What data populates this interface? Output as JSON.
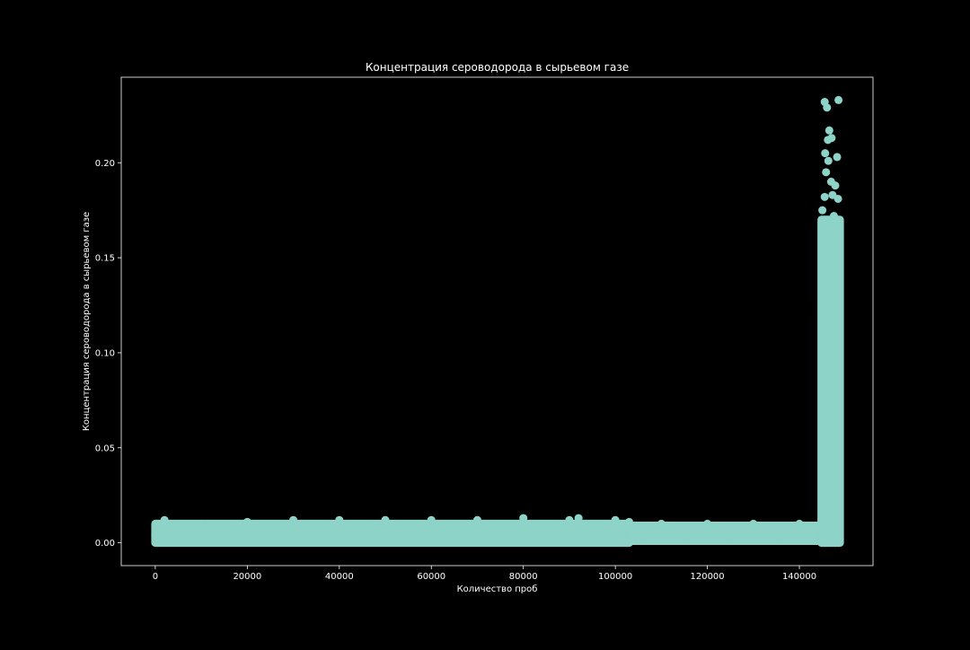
{
  "chart_data": {
    "type": "scatter",
    "title": "Концентрация сероводорода в сырьевом газе",
    "xlabel": "Количество проб",
    "ylabel": "Концентрация сероводорода в сырьевом газе",
    "xlim": [
      -7400,
      156000
    ],
    "ylim": [
      -0.012,
      0.245
    ],
    "x_ticks": [
      0,
      20000,
      40000,
      60000,
      80000,
      100000,
      120000,
      140000
    ],
    "x_tick_labels": [
      "0",
      "20000",
      "40000",
      "60000",
      "80000",
      "100000",
      "120000",
      "140000"
    ],
    "y_ticks": [
      0.0,
      0.05,
      0.1,
      0.15,
      0.2
    ],
    "y_tick_labels": [
      "0.00",
      "0.05",
      "0.10",
      "0.15",
      "0.20"
    ],
    "grid": false,
    "marker_color": "#8dd3c7",
    "background": "#000000",
    "series": [
      {
        "points": [
          [
            0,
            0.004
          ],
          [
            2000,
            0.012
          ],
          [
            5000,
            0.003
          ],
          [
            10000,
            0.01
          ],
          [
            15000,
            0.001
          ],
          [
            20000,
            0.011
          ],
          [
            25000,
            0.002
          ],
          [
            30000,
            0.012
          ],
          [
            35000,
            0.001
          ],
          [
            40000,
            0.012
          ],
          [
            45000,
            0.002
          ],
          [
            50000,
            0.012
          ],
          [
            55000,
            0.001
          ],
          [
            60000,
            0.012
          ],
          [
            65000,
            0.002
          ],
          [
            70000,
            0.012
          ],
          [
            75000,
            0.001
          ],
          [
            80000,
            0.013
          ],
          [
            85000,
            0.002
          ],
          [
            90000,
            0.012
          ],
          [
            92000,
            0.013
          ],
          [
            95000,
            0.002
          ],
          [
            100000,
            0.012
          ],
          [
            103000,
            0.011
          ],
          [
            105000,
            0.003
          ],
          [
            110000,
            0.01
          ],
          [
            115000,
            0.003
          ],
          [
            120000,
            0.01
          ],
          [
            125000,
            0.003
          ],
          [
            130000,
            0.01
          ],
          [
            135000,
            0.003
          ],
          [
            140000,
            0.01
          ],
          [
            143000,
            0.004
          ],
          [
            145500,
            0.232
          ],
          [
            146000,
            0.229
          ],
          [
            148500,
            0.233
          ],
          [
            146500,
            0.217
          ],
          [
            146200,
            0.212
          ],
          [
            147000,
            0.213
          ],
          [
            145600,
            0.205
          ],
          [
            146300,
            0.201
          ],
          [
            148200,
            0.203
          ],
          [
            145800,
            0.195
          ],
          [
            146900,
            0.19
          ],
          [
            147800,
            0.188
          ],
          [
            145500,
            0.182
          ],
          [
            147200,
            0.183
          ],
          [
            148400,
            0.181
          ],
          [
            145000,
            0.175
          ],
          [
            146000,
            0.17
          ],
          [
            147500,
            0.172
          ],
          [
            148000,
            0.165
          ],
          [
            145300,
            0.16
          ],
          [
            146700,
            0.15
          ],
          [
            147900,
            0.14
          ],
          [
            145100,
            0.12
          ],
          [
            146500,
            0.1
          ],
          [
            148100,
            0.08
          ],
          [
            145200,
            0.06
          ],
          [
            147000,
            0.04
          ],
          [
            148300,
            0.02
          ],
          [
            145000,
            0.0
          ],
          [
            148500,
            0.0
          ]
        ]
      }
    ],
    "bands": [
      {
        "x_start": 0,
        "x_end": 103000,
        "y_low": 0.0,
        "y_high": 0.01
      },
      {
        "x_start": 103000,
        "x_end": 145000,
        "y_low": 0.001,
        "y_high": 0.009
      },
      {
        "x_start": 144800,
        "x_end": 148800,
        "y_low": 0.0,
        "y_high": 0.17
      }
    ]
  }
}
